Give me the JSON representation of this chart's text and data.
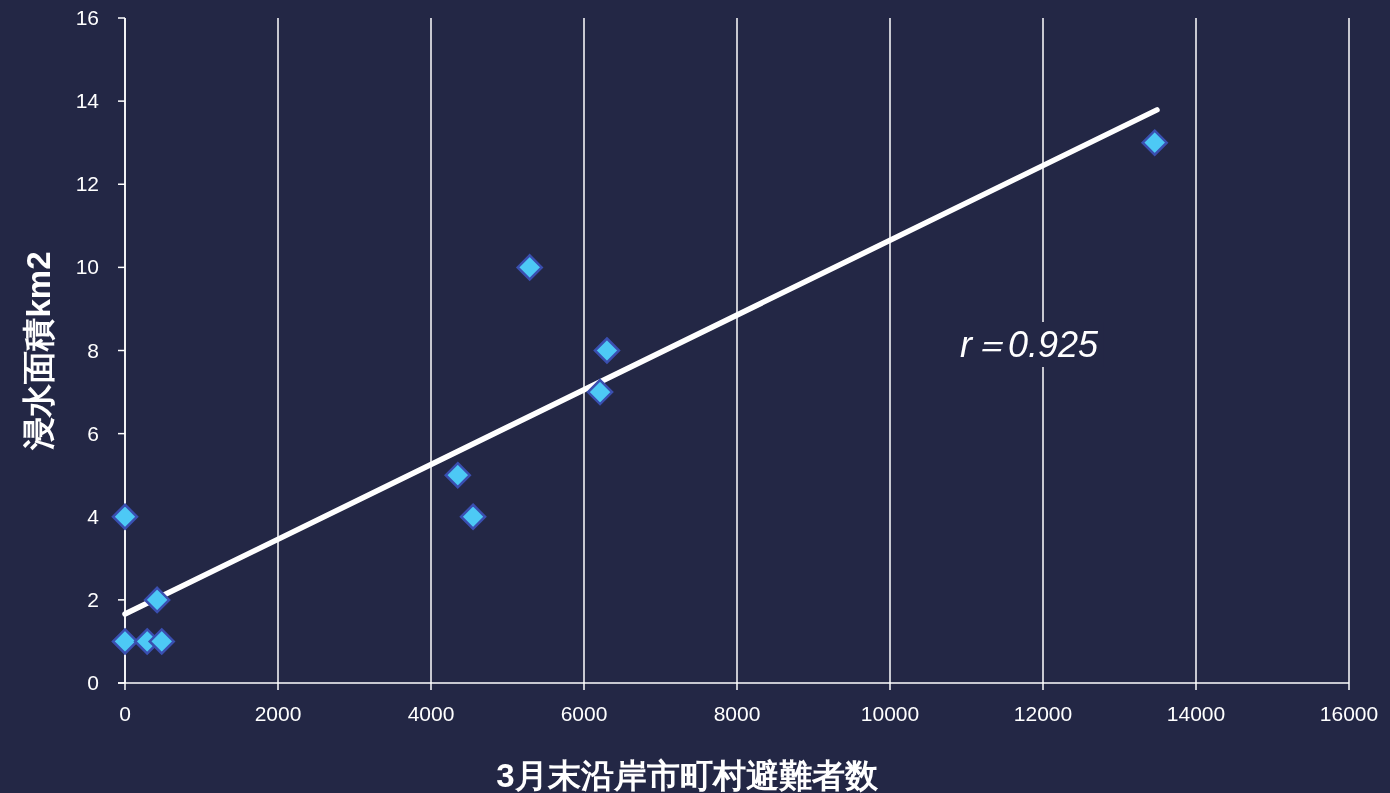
{
  "chart_data": {
    "type": "scatter",
    "xlabel": "3月末沿岸市町村避難者数",
    "ylabel": "浸水面積km2",
    "xlim": [
      0,
      16000
    ],
    "ylim": [
      0,
      16
    ],
    "xticks": [
      0,
      2000,
      4000,
      6000,
      8000,
      10000,
      12000,
      14000,
      16000
    ],
    "yticks": [
      0,
      2,
      4,
      6,
      8,
      10,
      12,
      14,
      16
    ],
    "grid": "x",
    "annotations": [
      "r＝0.925"
    ],
    "series": [
      {
        "marker": "diamond",
        "color": "#4dc9f5",
        "x": [
          0,
          420,
          0,
          290,
          480,
          5290,
          6300,
          6210,
          4350,
          4550,
          13460
        ],
        "values": [
          4,
          2,
          1,
          1,
          1,
          10,
          8,
          7,
          5,
          4,
          13
        ]
      },
      {
        "type": "line",
        "marker": "none",
        "color": "#ffffff",
        "x": [
          0,
          13490
        ],
        "values": [
          1.66,
          13.79
        ]
      }
    ]
  }
}
